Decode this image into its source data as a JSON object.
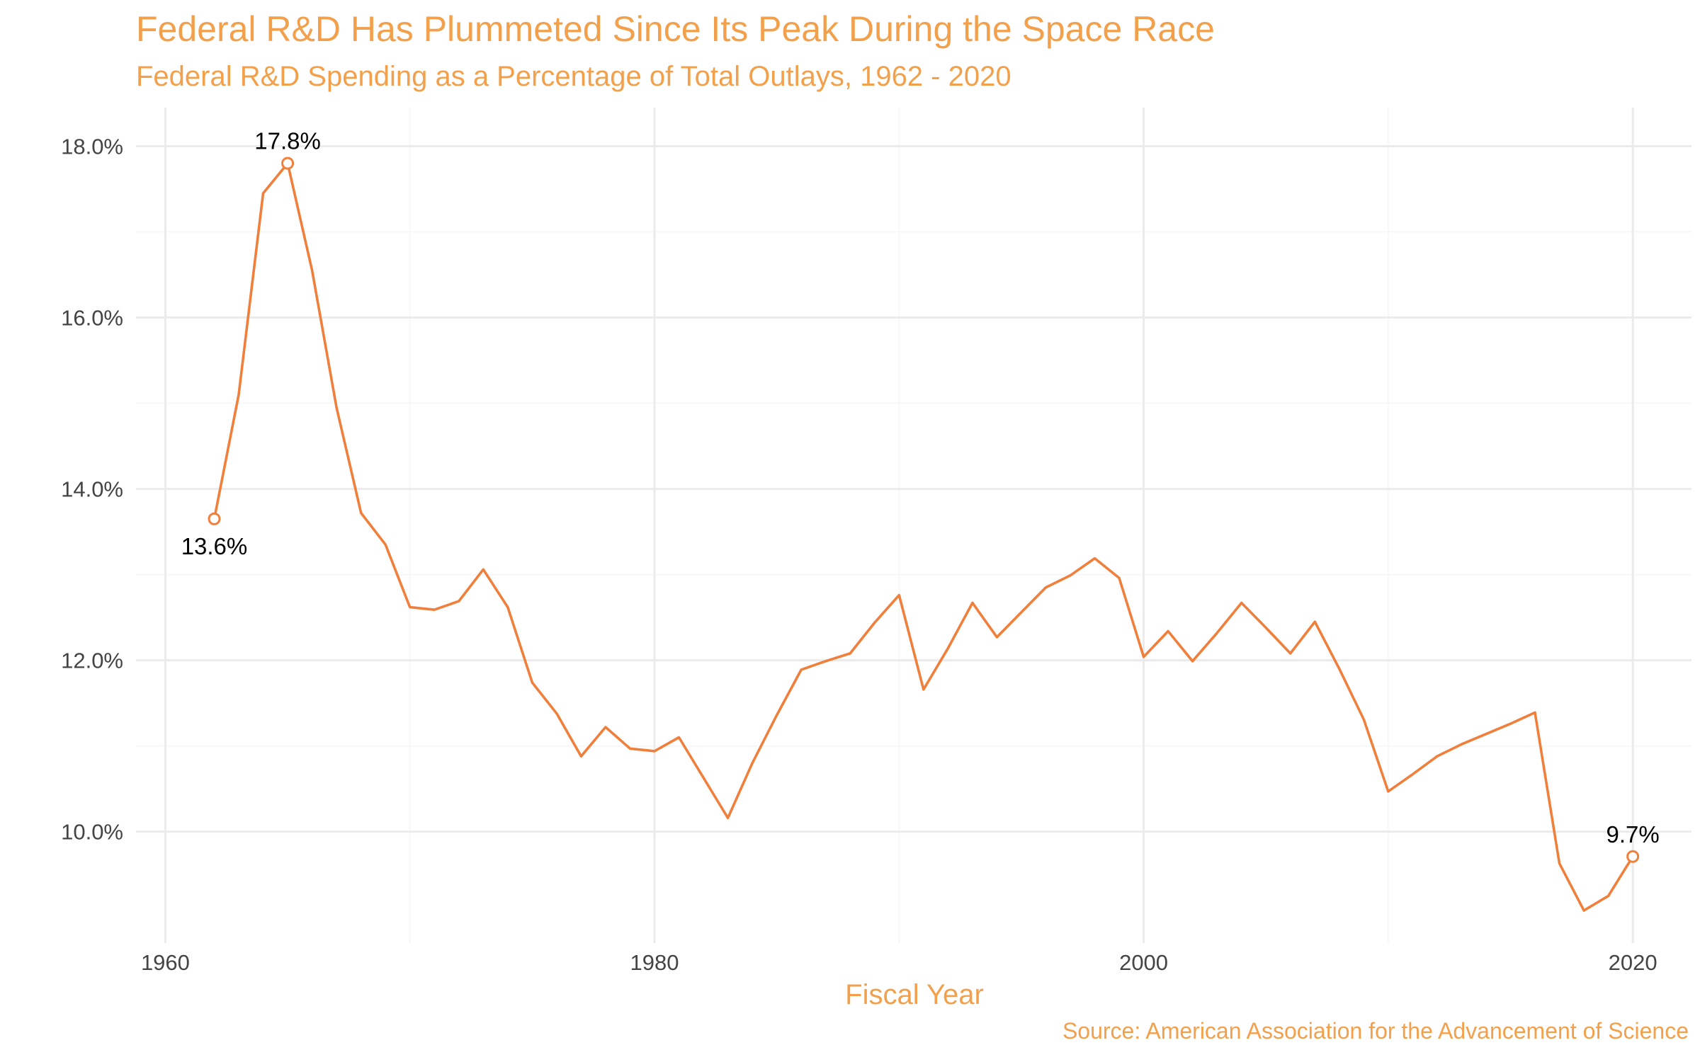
{
  "chart_data": {
    "type": "line",
    "title": "Federal R&D Has Plummeted Since Its Peak During the Space Race",
    "subtitle": "Federal R&D Spending as a Percentage of Total Outlays, 1962 - 2020",
    "xlabel": "Fiscal Year",
    "ylabel": "",
    "caption": "Source: American Association for the Advancement of Science",
    "xlim": [
      1958.8,
      2022.4
    ],
    "ylim": [
      8.7,
      18.45
    ],
    "x_ticks": [
      1960,
      1980,
      2000,
      2020
    ],
    "x_tick_labels": [
      "1960",
      "1980",
      "2000",
      "2020"
    ],
    "y_ticks": [
      10,
      12,
      14,
      16,
      18
    ],
    "y_tick_labels": [
      "10.0%",
      "12.0%",
      "14.0%",
      "16.0%",
      "18.0%"
    ],
    "grid": true,
    "line_color": "#F07F3C",
    "title_color": "#F2A04B",
    "series": [
      {
        "x": [
          1962,
          1963,
          1964,
          1965,
          1966,
          1967,
          1968,
          1969,
          1970,
          1971,
          1972,
          1973,
          1974,
          1975,
          1976,
          1977,
          1978,
          1979,
          1980,
          1981,
          1982,
          1983,
          1984,
          1985,
          1986,
          1987,
          1988,
          1989,
          1990,
          1991,
          1992,
          1993,
          1994,
          1995,
          1996,
          1997,
          1998,
          1999,
          2000,
          2001,
          2002,
          2003,
          2004,
          2005,
          2006,
          2007,
          2008,
          2009,
          2010,
          2011,
          2012,
          2013,
          2014,
          2015,
          2016,
          2017,
          2018,
          2019,
          2020
        ],
        "y": [
          13.65,
          15.1,
          17.45,
          17.8,
          16.55,
          14.95,
          13.72,
          13.35,
          12.62,
          12.59,
          12.69,
          13.06,
          12.62,
          11.74,
          11.38,
          10.88,
          11.22,
          10.97,
          10.94,
          11.1,
          10.63,
          10.16,
          10.8,
          11.36,
          11.89,
          11.99,
          12.08,
          12.44,
          12.76,
          11.66,
          12.14,
          12.67,
          12.27,
          12.56,
          12.85,
          12.99,
          13.19,
          12.96,
          12.04,
          12.34,
          11.99,
          12.32,
          12.67,
          12.38,
          12.08,
          12.45,
          11.9,
          11.31,
          10.47,
          10.67,
          10.88,
          11.02,
          11.14,
          11.26,
          11.39,
          9.63,
          9.08,
          9.25,
          9.71
        ]
      }
    ],
    "annotations": [
      {
        "x": 1962,
        "y": 13.65,
        "label": "13.6%"
      },
      {
        "x": 1965,
        "y": 17.8,
        "label": "17.8%"
      },
      {
        "x": 2020,
        "y": 9.71,
        "label": "9.7%"
      }
    ]
  }
}
